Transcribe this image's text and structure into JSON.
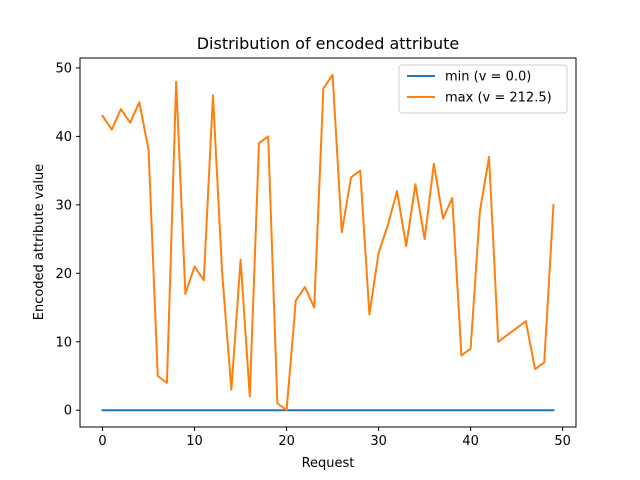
{
  "chart_data": {
    "type": "line",
    "title": "Distribution of encoded attribute",
    "xlabel": "Request",
    "ylabel": "Encoded attribute value",
    "xlim": [
      -2.45,
      51.45
    ],
    "ylim": [
      -2.45,
      51.45
    ],
    "xticks": [
      0,
      10,
      20,
      30,
      40,
      50
    ],
    "yticks": [
      0,
      10,
      20,
      30,
      40,
      50
    ],
    "grid": false,
    "legend_position": "top-right",
    "x": [
      0,
      1,
      2,
      3,
      4,
      5,
      6,
      7,
      8,
      9,
      10,
      11,
      12,
      13,
      14,
      15,
      16,
      17,
      18,
      19,
      20,
      21,
      22,
      23,
      24,
      25,
      26,
      27,
      28,
      29,
      30,
      31,
      32,
      33,
      34,
      35,
      36,
      37,
      38,
      39,
      40,
      41,
      42,
      43,
      44,
      45,
      46,
      47,
      48,
      49
    ],
    "series": [
      {
        "name": "min (v = 0.0)",
        "color": "#1f77b4",
        "values": [
          0,
          0,
          0,
          0,
          0,
          0,
          0,
          0,
          0,
          0,
          0,
          0,
          0,
          0,
          0,
          0,
          0,
          0,
          0,
          0,
          0,
          0,
          0,
          0,
          0,
          0,
          0,
          0,
          0,
          0,
          0,
          0,
          0,
          0,
          0,
          0,
          0,
          0,
          0,
          0,
          0,
          0,
          0,
          0,
          0,
          0,
          0,
          0,
          0,
          0
        ]
      },
      {
        "name": "max (v = 212.5)",
        "color": "#ff7f0e",
        "values": [
          43,
          41,
          44,
          42,
          45,
          38,
          5,
          4,
          48,
          17,
          21,
          19,
          46,
          20,
          3,
          22,
          2,
          39,
          40,
          1,
          0,
          16,
          18,
          15,
          47,
          49,
          26,
          34,
          35,
          14,
          23,
          27,
          32,
          24,
          33,
          25,
          36,
          28,
          31,
          8,
          9,
          29,
          37,
          10,
          11,
          12,
          13,
          6,
          7,
          30
        ]
      }
    ]
  }
}
